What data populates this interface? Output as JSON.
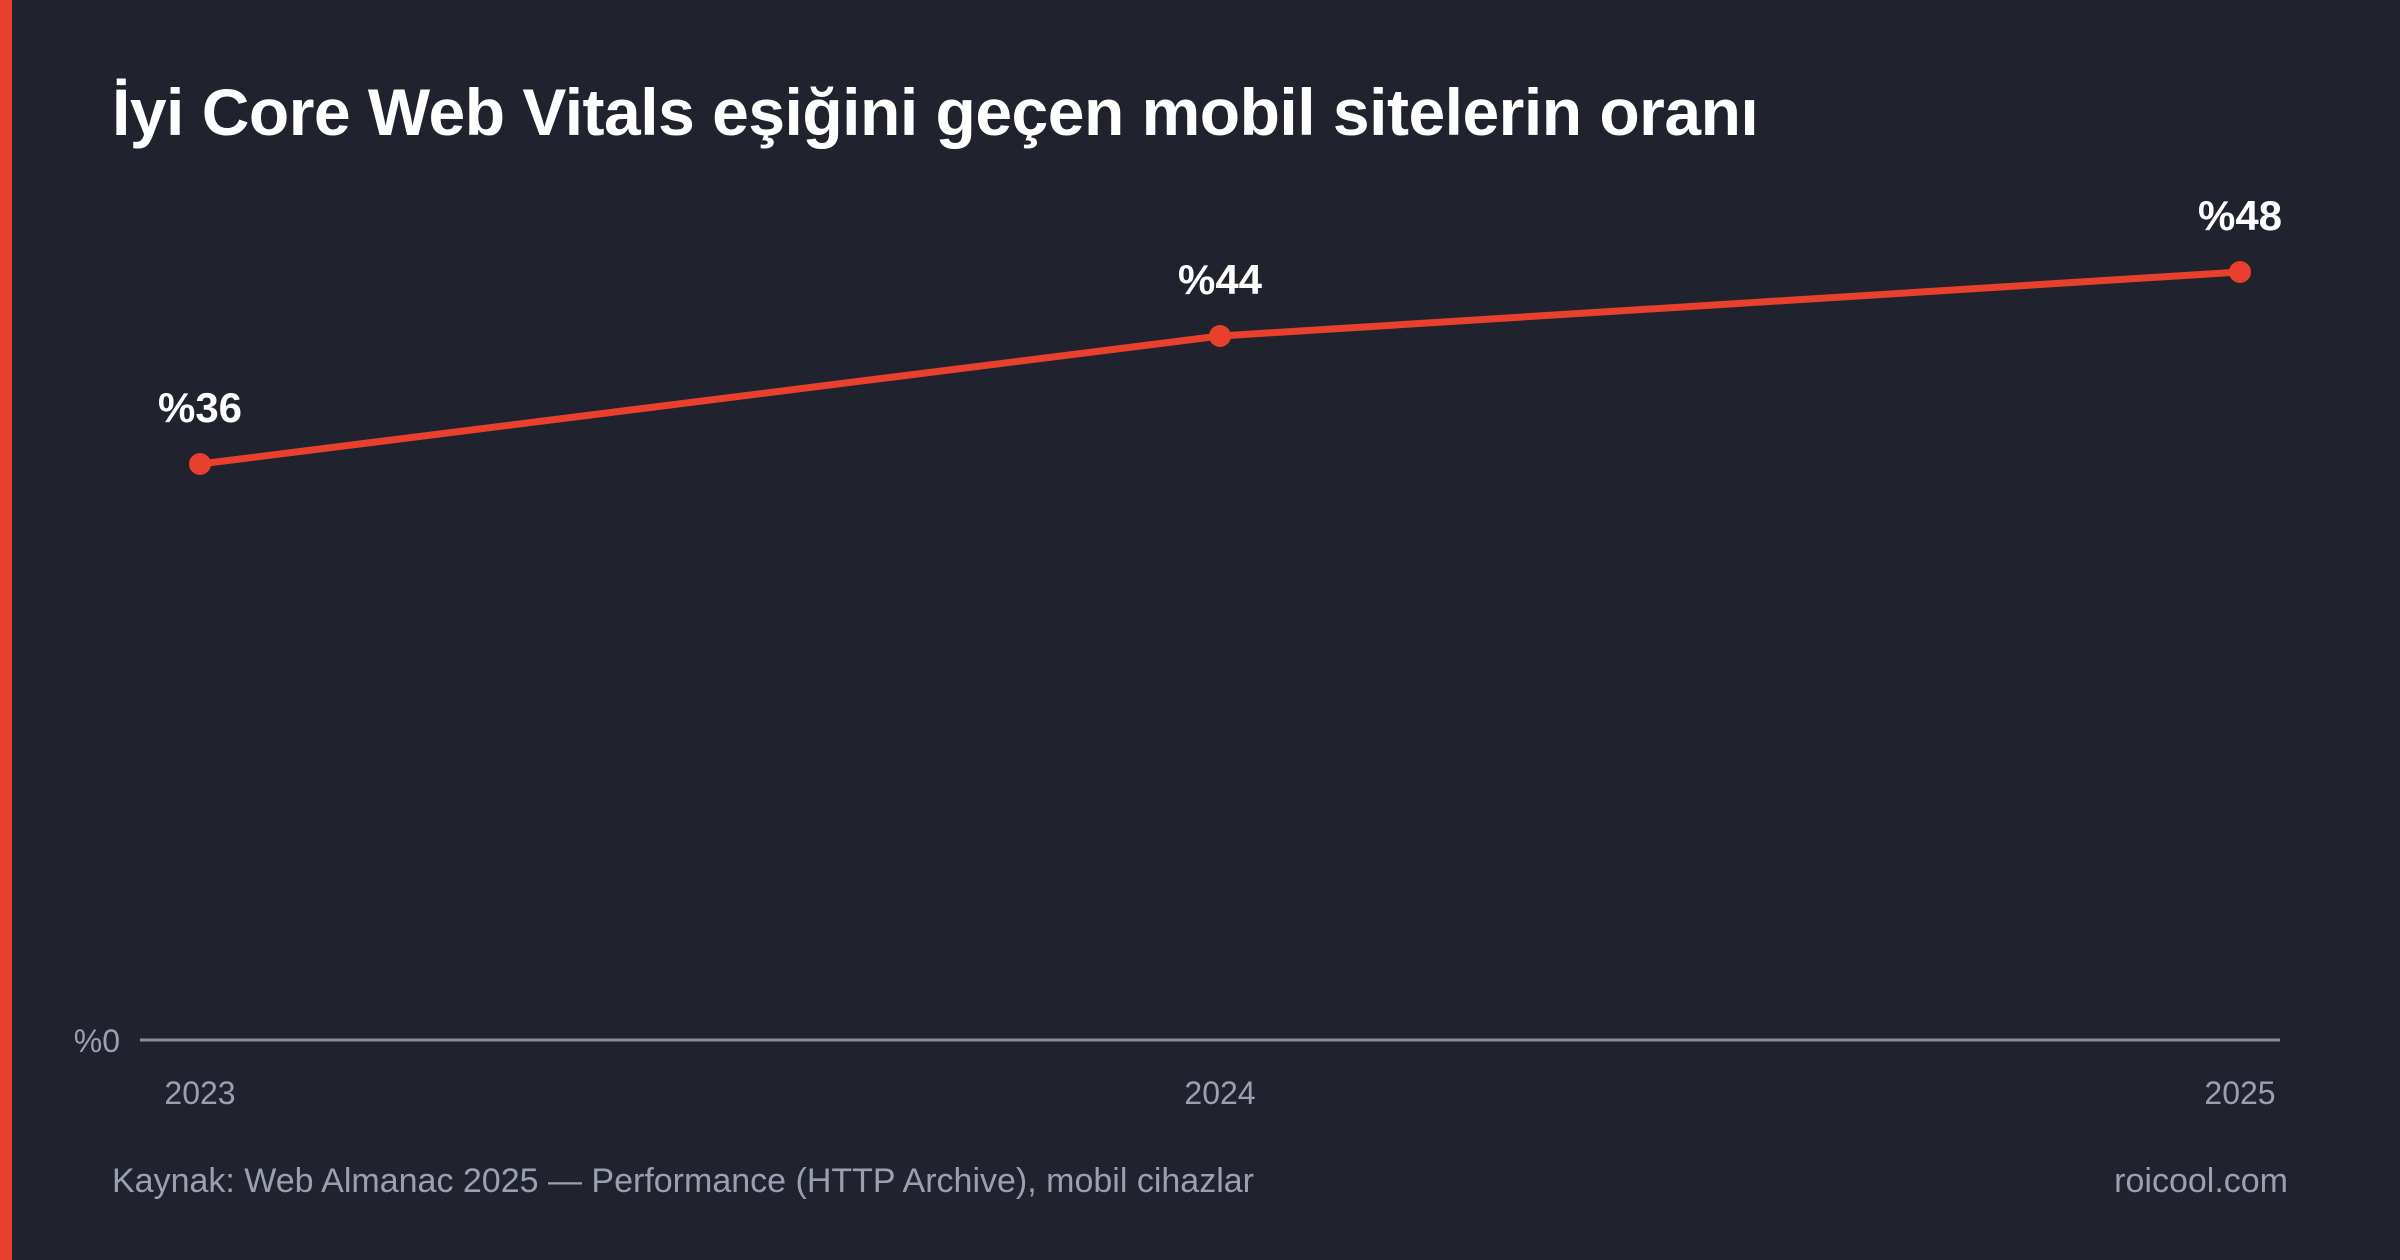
{
  "header": {
    "title": "İyi Core Web Vitals eşiğini geçen mobil sitelerin oranı"
  },
  "footer": {
    "source": "Kaynak: Web Almanac 2025 — Performance (HTTP Archive), mobil cihazlar",
    "brand": "roicool.com"
  },
  "colors": {
    "background": "#20232e",
    "accent": "#e8402d",
    "text": "#ffffff",
    "muted": "#9aa0b1",
    "axis": "#8a8fa0"
  },
  "chart_data": {
    "type": "line",
    "x": [
      "2023",
      "2024",
      "2025"
    ],
    "series": [
      {
        "values": [
          36,
          44,
          48
        ],
        "labels": [
          "%36",
          "%44",
          "%48"
        ]
      }
    ],
    "ylim": [
      0,
      60
    ],
    "y_baseline_label": "%0",
    "grid": false,
    "legend": "none",
    "xlabel": "",
    "ylabel": ""
  }
}
